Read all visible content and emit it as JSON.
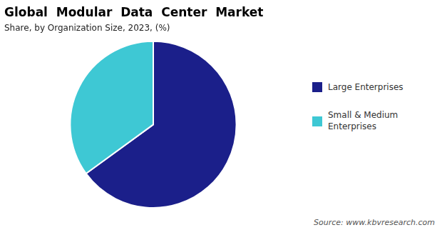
{
  "chart_data": {
    "type": "pie",
    "title": "Global  Modular  Data  Center  Market",
    "subtitle": "Share, by Organization Size, 2023, (%)",
    "annotations": [
      "Source: www.kbvresearch.com"
    ],
    "categories": [
      "Large Enterprises",
      "Small & Medium\nEnterprises"
    ],
    "values": [
      65,
      35
    ],
    "colors": [
      "#1b1f8a",
      "#3ec8d4"
    ],
    "legend": "right"
  }
}
